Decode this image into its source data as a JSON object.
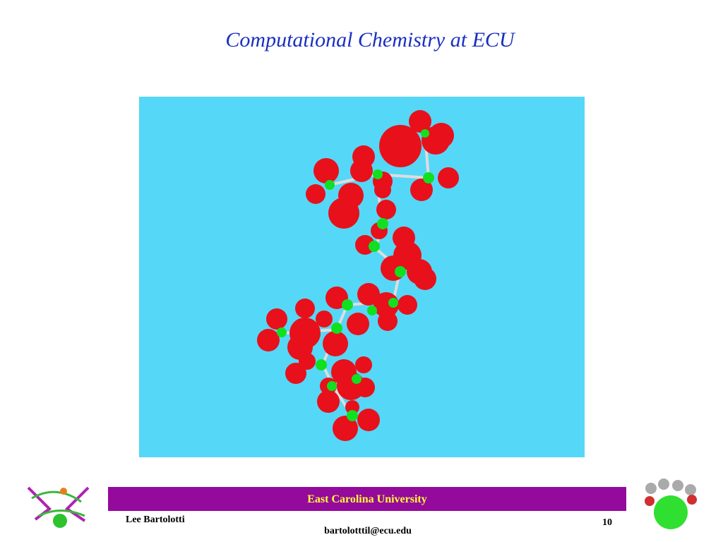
{
  "slide": {
    "title": "Computational Chemistry at ECU",
    "footer": {
      "banner": "East Carolina University",
      "author": "Lee Bartolotti",
      "page_number": "10",
      "email": "bartolotttil@ecu.edu"
    }
  }
}
